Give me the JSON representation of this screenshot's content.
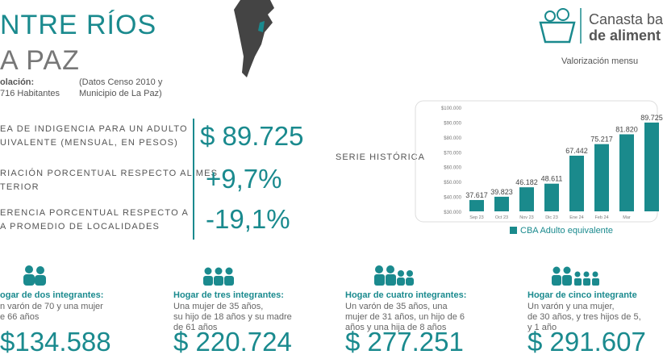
{
  "header": {
    "title": "NTRE RÍOS",
    "subtitle": "A PAZ",
    "population_label": "olación:",
    "population_value": "716 Habitantes",
    "source": [
      "(Datos Censo 2010 y",
      "Municipio de La Paz)"
    ]
  },
  "logo": {
    "name": [
      "Canasta ba",
      "de aliment"
    ],
    "caption": "Valorización mensu"
  },
  "indicators": [
    {
      "label": [
        "EA DE INDIGENCIA PARA UN ADULTO",
        "UIVALENTE (MENSUAL, EN PESOS)"
      ],
      "value": "$ 89.725"
    },
    {
      "label": [
        "RIACIÓN PORCENTUAL RESPECTO AL MES",
        "TERIOR"
      ],
      "value": "+9,7%"
    },
    {
      "label": [
        "ERENCIA PORCENTUAL RESPECTO A",
        "A PROMEDIO DE LOCALIDADES"
      ],
      "value": "-19,1%"
    }
  ],
  "chart_data": {
    "type": "bar",
    "title": "SERIE HISTÓRICA",
    "categories": [
      "Sep 23",
      "Oct 23",
      "Nov 23",
      "Dic 23",
      "Ene 24",
      "Feb 24",
      "Mar",
      null
    ],
    "series": [
      {
        "name": "CBA Adulto equivalente",
        "color": "#1a8a8c",
        "values": [
          37617,
          39823,
          46182,
          48611,
          67442,
          75217,
          81820,
          89725
        ],
        "value_labels": [
          "37.617",
          "39.823",
          "46.182",
          "48.611",
          "67.442",
          "75.217",
          "81.820",
          "89.725"
        ]
      }
    ],
    "ylim": [
      30000,
      100000
    ],
    "yticks": [
      {
        "value": 30000,
        "label": "$30.000"
      },
      {
        "value": 40000,
        "label": "$40.000"
      },
      {
        "value": 50000,
        "label": "$50.000"
      },
      {
        "value": 60000,
        "label": "$60.000"
      },
      {
        "value": 70000,
        "label": "$70.000"
      },
      {
        "value": 80000,
        "label": "$80.000"
      },
      {
        "value": 90000,
        "label": "$90.000"
      },
      {
        "value": 100000,
        "label": "$100.000"
      }
    ],
    "grid": false
  },
  "households": [
    {
      "title": "ogar de dos integrantes:",
      "description": [
        "n varón de 70 y una mujer",
        "e 66 años"
      ],
      "cost": "$134.588"
    },
    {
      "title": "Hogar de tres integrantes:",
      "description": [
        "Una mujer de 35 años,",
        "su hijo de 18 años y su madre",
        "de 61 años"
      ],
      "cost": "$ 220.724"
    },
    {
      "title": "Hogar de cuatro integrantes:",
      "description": [
        "Un varón de 35 años, una",
        "mujer de 31 años, un hijo de 6",
        "años y una hija de 8 años"
      ],
      "cost": "$ 277.251"
    },
    {
      "title": "Hogar de cinco integrante",
      "description": [
        "Un varón y una mujer,",
        "de 30 años, y tres hijos de 5,",
        "y 1 año"
      ],
      "cost": "$ 291.607"
    }
  ]
}
